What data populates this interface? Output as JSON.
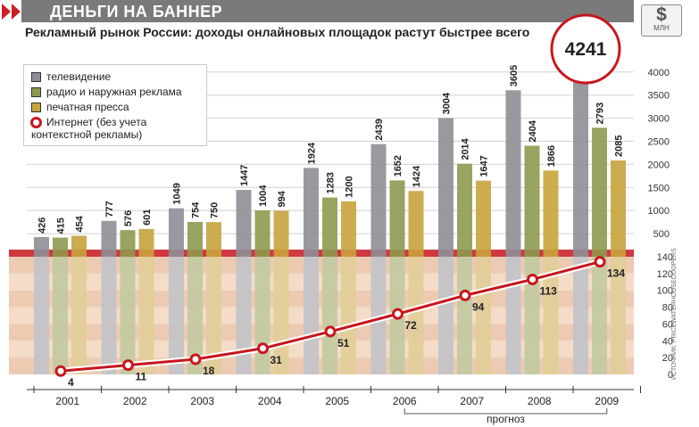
{
  "header": {
    "title": "ДЕНЬГИ НА БАННЕР",
    "subtitle": "Рекламный рынок России: доходы онлайновых площадок растут быстрее всего",
    "unit_symbol": "$",
    "unit_label": "МЛН"
  },
  "legend": {
    "items": [
      {
        "label": "телевидение",
        "color": "#8e8e96"
      },
      {
        "label": "радио и наружная реклама",
        "color": "#8d9a4e"
      },
      {
        "label": "печатная пресса",
        "color": "#c8a23c"
      },
      {
        "label": "Интернет (без учета контекстной рекламы)",
        "color": "#c8161d"
      }
    ],
    "internet_line1": "Интернет (без учета",
    "internet_line2": "контекстной рекламы)"
  },
  "highlight_value": "4241",
  "forecast_label": "прогноз",
  "source": "ИСТОЧНИК: PRICEWATERHOUSECOOPERS",
  "colors": {
    "tv": "#8e8e96",
    "radio": "#8d9a4e",
    "press": "#c8a23c",
    "internet": "#c8161d",
    "title_bar": "#7a7a7a",
    "stripe_light": "#f5dcc8",
    "stripe_dark": "#eccbb2"
  },
  "chart_data": {
    "type": "bar",
    "categories": [
      "2001",
      "2002",
      "2003",
      "2004",
      "2005",
      "2006",
      "2007",
      "2008",
      "2009"
    ],
    "forecast_categories": [
      "2006",
      "2007",
      "2008",
      "2009"
    ],
    "series": [
      {
        "name": "телевидение",
        "values": [
          426,
          777,
          1049,
          1447,
          1924,
          2439,
          3004,
          3605,
          4241
        ]
      },
      {
        "name": "радио и наружная реклама",
        "values": [
          415,
          576,
          754,
          1004,
          1283,
          1652,
          2014,
          2404,
          2793
        ]
      },
      {
        "name": "печатная пресса",
        "values": [
          454,
          601,
          750,
          994,
          1200,
          1424,
          1647,
          1866,
          2085
        ]
      }
    ],
    "line_series": {
      "name": "Интернет (без учета контекстной рекламы)",
      "type": "line",
      "values": [
        4,
        11,
        18,
        31,
        51,
        72,
        94,
        113,
        134
      ]
    },
    "upper_axis": {
      "ylim": [
        0,
        4000
      ],
      "ticks": [
        "4000",
        "3500",
        "3000",
        "2500",
        "2000",
        "1500",
        "1000",
        "500"
      ]
    },
    "lower_axis": {
      "ylim": [
        0,
        140
      ],
      "ticks": [
        "140",
        "120",
        "100",
        "80",
        "60",
        "40",
        "20",
        "0"
      ]
    },
    "legend_position": "top-left",
    "grid": true
  }
}
